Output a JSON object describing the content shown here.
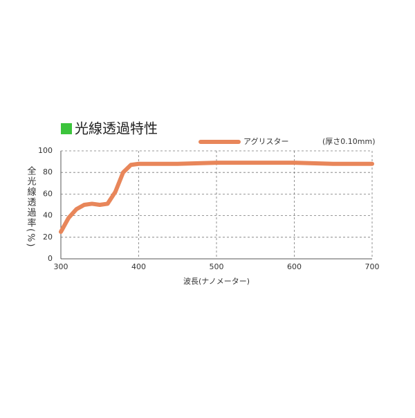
{
  "chart_data": {
    "type": "line",
    "title": "光線透過特性",
    "note": "(厚さ0.10mm)",
    "x_label": "波長(ナノメーター)",
    "y_label": "全光線透過率(%)",
    "x": [
      300,
      310,
      320,
      330,
      340,
      350,
      360,
      370,
      380,
      390,
      400,
      450,
      500,
      550,
      600,
      650,
      700
    ],
    "series": [
      {
        "name": "アグリスター",
        "color": "#e8865a",
        "values": [
          25,
          38,
          46,
          50,
          51,
          50,
          51,
          62,
          80,
          87,
          88,
          88,
          89,
          89,
          89,
          88,
          88
        ]
      }
    ],
    "xlim": [
      300,
      700
    ],
    "xticks": [
      300,
      400,
      500,
      600,
      700
    ],
    "ylim": [
      0,
      100
    ],
    "yticks": [
      0,
      20,
      40,
      60,
      80,
      100
    ],
    "grid": true
  }
}
